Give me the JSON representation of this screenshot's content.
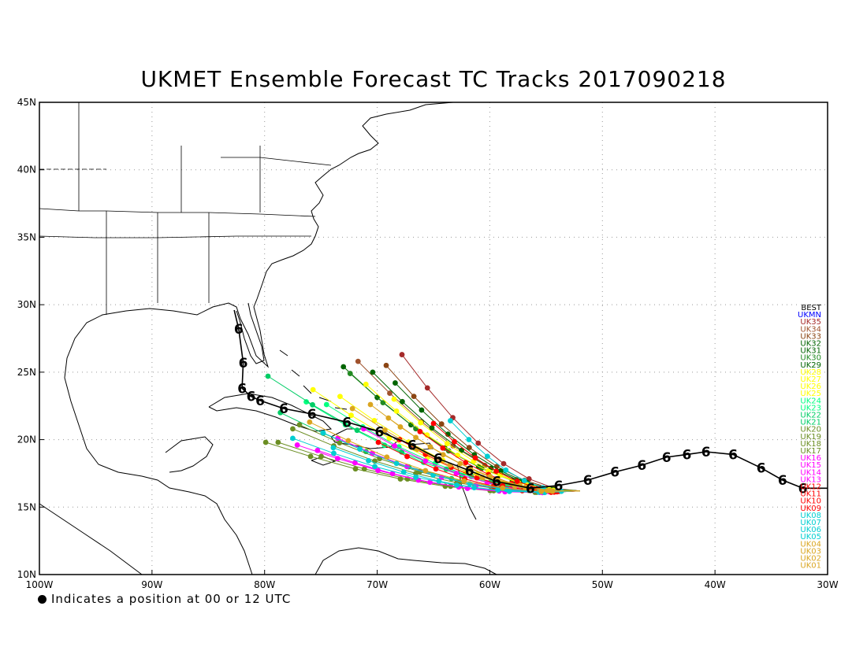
{
  "title": "UKMET Ensemble Forecast TC Tracks 2017090218",
  "footnote": "Indicates a position at 00 or 12 UTC",
  "map": {
    "lon_range": [
      -100,
      -30
    ],
    "lat_range": [
      10,
      45
    ],
    "lon_ticks": [
      {
        "value": -100,
        "label": "100W"
      },
      {
        "value": -90,
        "label": "90W"
      },
      {
        "value": -80,
        "label": "80W"
      },
      {
        "value": -70,
        "label": "70W"
      },
      {
        "value": -60,
        "label": "60W"
      },
      {
        "value": -50,
        "label": "50W"
      },
      {
        "value": -40,
        "label": "40W"
      },
      {
        "value": -30,
        "label": "30W"
      }
    ],
    "lat_ticks": [
      {
        "value": 10,
        "label": "10N"
      },
      {
        "value": 15,
        "label": "15N"
      },
      {
        "value": 20,
        "label": "20N"
      },
      {
        "value": 25,
        "label": "25N"
      },
      {
        "value": 30,
        "label": "30N"
      },
      {
        "value": 35,
        "label": "35N"
      },
      {
        "value": 40,
        "label": "40N"
      },
      {
        "value": 45,
        "label": "45N"
      }
    ],
    "grid": true
  },
  "best_track": {
    "name": "BEST",
    "color": "#000000",
    "points": [
      [
        -30.0,
        16.4
      ],
      [
        -32.2,
        16.4
      ],
      [
        -34.0,
        17.0
      ],
      [
        -35.9,
        17.9
      ],
      [
        -38.4,
        18.9
      ],
      [
        -40.8,
        19.1
      ],
      [
        -42.5,
        18.9
      ],
      [
        -44.3,
        18.7
      ],
      [
        -46.5,
        18.1
      ],
      [
        -48.9,
        17.6
      ],
      [
        -51.3,
        17.0
      ],
      [
        -53.9,
        16.6
      ],
      [
        -56.4,
        16.4
      ],
      [
        -59.4,
        16.9
      ],
      [
        -61.8,
        17.7
      ],
      [
        -64.6,
        18.6
      ],
      [
        -66.9,
        19.6
      ],
      [
        -69.8,
        20.6
      ],
      [
        -72.7,
        21.3
      ],
      [
        -75.8,
        21.9
      ],
      [
        -78.3,
        22.3
      ],
      [
        -80.4,
        22.9
      ],
      [
        -81.2,
        23.2
      ],
      [
        -82.0,
        23.8
      ],
      [
        -81.9,
        25.7
      ],
      [
        -82.3,
        28.2
      ],
      [
        -82.7,
        29.6
      ]
    ]
  },
  "ensemble": {
    "legend_names": [
      "BEST",
      "UKMN",
      "UK35",
      "UK34",
      "UK33",
      "UK32",
      "UK31",
      "UK30",
      "UK29",
      "UK28",
      "UK27",
      "UK26",
      "UK25",
      "UK24",
      "UK23",
      "UK22",
      "UK21",
      "UK20",
      "UK19",
      "UK18",
      "UK17",
      "UK16",
      "UK15",
      "UK14",
      "UK13",
      "UK12",
      "UK11",
      "UK10",
      "UK09",
      "UK08",
      "UK07",
      "UK06",
      "UK05",
      "UK04",
      "UK03",
      "UK02",
      "UK01"
    ],
    "legend_colors": [
      "#000000",
      "#0000ff",
      "#a52a2a",
      "#a0522d",
      "#8b4513",
      "#006400",
      "#006400",
      "#228b22",
      "#006400",
      "#ffff00",
      "#ffff00",
      "#ffff00",
      "#ffff00",
      "#00ff7f",
      "#00ff7f",
      "#00cd66",
      "#00cd66",
      "#6b8e23",
      "#6b8e23",
      "#6b8e23",
      "#6b8e23",
      "#ff00ff",
      "#ff00ff",
      "#ff00ff",
      "#ff00ff",
      "#ff0000",
      "#ff0000",
      "#ff0000",
      "#ff0000",
      "#00ced1",
      "#00ced1",
      "#00ced1",
      "#00ced1",
      "#daa520",
      "#daa520",
      "#daa520",
      "#daa520"
    ],
    "endpoints": [
      [
        -67.8,
        26.3
      ],
      [
        -71.7,
        25.8
      ],
      [
        -69.2,
        25.5
      ],
      [
        -70.4,
        25.0
      ],
      [
        -73.0,
        25.4
      ],
      [
        -72.4,
        24.9
      ],
      [
        -68.4,
        24.2
      ],
      [
        -71.0,
        24.1
      ],
      [
        -75.7,
        23.7
      ],
      [
        -73.3,
        23.2
      ],
      [
        -68.5,
        23.0
      ],
      [
        -74.5,
        22.6
      ],
      [
        -76.3,
        22.8
      ],
      [
        -78.6,
        22.0
      ],
      [
        -79.7,
        24.7
      ],
      [
        -76.9,
        21.1
      ],
      [
        -77.5,
        20.8
      ],
      [
        -78.8,
        19.8
      ],
      [
        -79.9,
        19.8
      ],
      [
        -77.1,
        19.6
      ],
      [
        -75.3,
        19.2
      ],
      [
        -73.5,
        20.1
      ],
      [
        -71.2,
        20.8
      ],
      [
        -69.9,
        19.8
      ],
      [
        -68.0,
        20.0
      ],
      [
        -66.2,
        20.6
      ],
      [
        -65.0,
        21.2
      ],
      [
        -63.5,
        21.4
      ],
      [
        -73.9,
        19.4
      ],
      [
        -77.5,
        20.1
      ],
      [
        -74.8,
        20.5
      ],
      [
        -76.0,
        21.3
      ],
      [
        -72.2,
        22.3
      ],
      [
        -69.0,
        21.6
      ],
      [
        -70.6,
        22.6
      ]
    ]
  }
}
